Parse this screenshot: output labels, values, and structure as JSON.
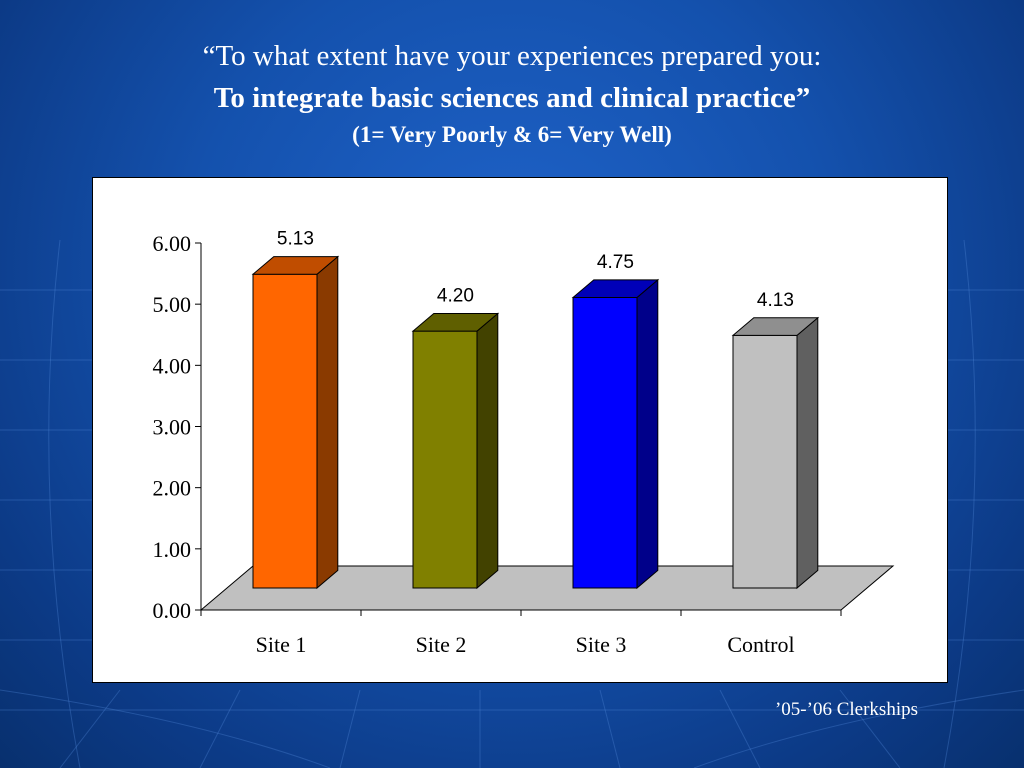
{
  "title": {
    "line1": "“To what extent have your experiences prepared you:",
    "line2": "To integrate basic sciences and clinical practice”",
    "line3": "(1= Very Poorly & 6= Very Well)"
  },
  "footer": "’05-’06 Clerkships",
  "chart_data": {
    "type": "bar",
    "style": "3d-column",
    "categories": [
      "Site 1",
      "Site 2",
      "Site 3",
      "Control"
    ],
    "values": [
      5.13,
      4.2,
      4.75,
      4.13
    ],
    "value_labels": [
      "5.13",
      "4.20",
      "4.75",
      "4.13"
    ],
    "bar_colors": [
      "#ff6600",
      "#808000",
      "#0000ff",
      "#c0c0c0"
    ],
    "bar_top_colors": [
      "#c04d00",
      "#5f5f00",
      "#0000b8",
      "#8f8f8f"
    ],
    "bar_side_colors": [
      "#8a3a00",
      "#424200",
      "#00008a",
      "#606060"
    ],
    "floor_color": "#c0c0c0",
    "ylim": [
      0,
      6
    ],
    "y_ticks": [
      "0.00",
      "1.00",
      "2.00",
      "3.00",
      "4.00",
      "5.00",
      "6.00"
    ],
    "grid": false,
    "legend": "none"
  }
}
